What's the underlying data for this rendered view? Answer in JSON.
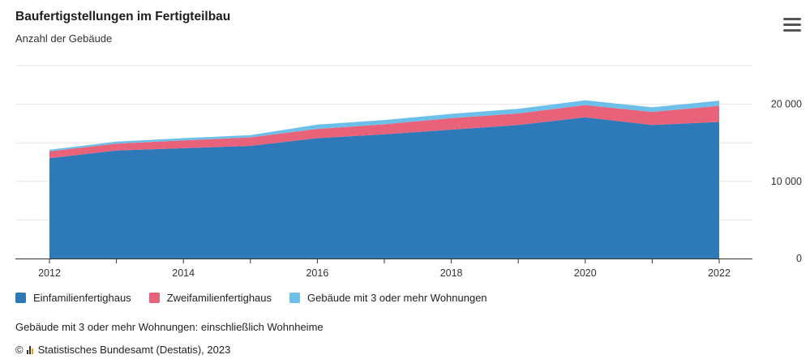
{
  "header": {
    "title": "Baufertigstellungen im Fertigteilbau",
    "subtitle": "Anzahl der Gebäude",
    "menu_icon": "hamburger-menu-icon"
  },
  "colors": {
    "einfamilien": "#2e7ab9",
    "zweifamilien": "#e8627a",
    "mehr_wohnungen": "#6bbfe8",
    "grid": "#e6e6e6",
    "axis": "#333333"
  },
  "footer": {
    "note": "Gebäude mit 3 oder mehr Wohnungen: einschließlich Wohnheime",
    "copyright_symbol": "©",
    "source": "Statistisches Bundesamt (Destatis), 2023"
  },
  "chart_data": {
    "type": "area",
    "stacked": true,
    "title": "Baufertigstellungen im Fertigteilbau",
    "subtitle": "Anzahl der Gebäude",
    "x": [
      2012,
      2013,
      2014,
      2015,
      2016,
      2017,
      2018,
      2019,
      2020,
      2021,
      2022
    ],
    "x_ticks": [
      "2012",
      "2014",
      "2016",
      "2018",
      "2020",
      "2022"
    ],
    "y_ticks": [
      "0",
      "10 000",
      "20 000"
    ],
    "ylim": [
      0,
      25000
    ],
    "grid": true,
    "legend_position": "bottom-left",
    "series": [
      {
        "name": "Einfamilienfertighaus",
        "color": "#2e7ab9",
        "values": [
          13000,
          14000,
          14300,
          14600,
          15600,
          16100,
          16700,
          17300,
          18300,
          17300,
          17700
        ]
      },
      {
        "name": "Zweifamilienfertighaus",
        "color": "#e8627a",
        "values": [
          900,
          900,
          1000,
          1100,
          1200,
          1300,
          1500,
          1500,
          1600,
          1700,
          2100
        ]
      },
      {
        "name": "Gebäude mit 3 oder mehr Wohnungen",
        "color": "#6bbfe8",
        "values": [
          200,
          250,
          300,
          300,
          550,
          550,
          550,
          600,
          600,
          600,
          650
        ]
      }
    ]
  }
}
